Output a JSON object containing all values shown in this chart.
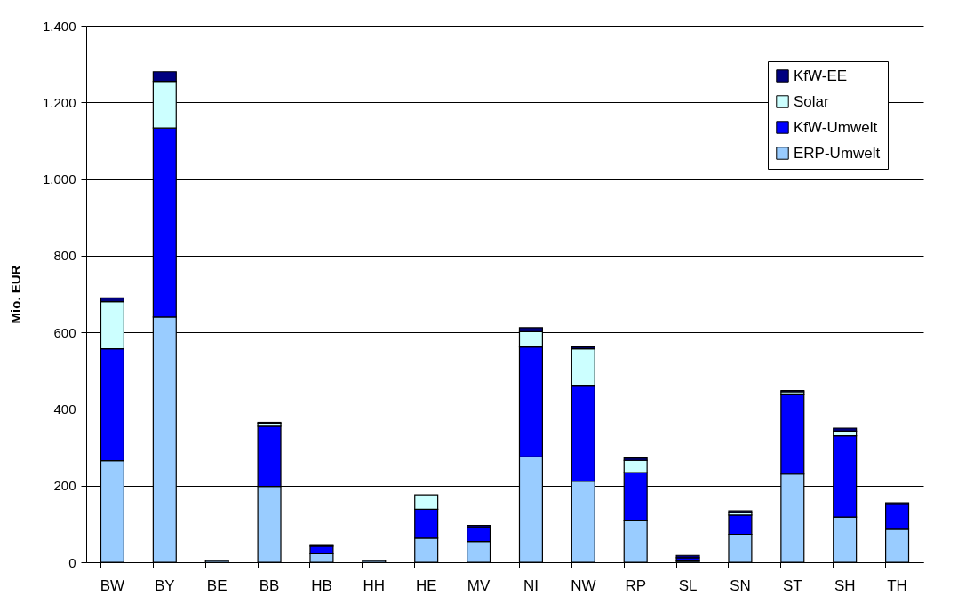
{
  "chart_data": {
    "type": "bar",
    "stacked": true,
    "ylabel": "Mio. EUR",
    "categories": [
      "BW",
      "BY",
      "BE",
      "BB",
      "HB",
      "HH",
      "HE",
      "MV",
      "NI",
      "NW",
      "RP",
      "SL",
      "SN",
      "ST",
      "SH",
      "TH"
    ],
    "series": [
      {
        "name": "ERP-Umwelt",
        "color": "#99ccff",
        "values": [
          265,
          640,
          4,
          198,
          22,
          4,
          63,
          54,
          275,
          212,
          110,
          3,
          73,
          230,
          118,
          86
        ]
      },
      {
        "name": "KfW-Umwelt",
        "color": "#0000ff",
        "values": [
          292,
          493,
          null,
          157,
          20,
          null,
          75,
          37,
          287,
          248,
          124,
          9,
          50,
          207,
          212,
          64
        ]
      },
      {
        "name": "Solar",
        "color": "#ccffff",
        "values": [
          123,
          122,
          null,
          8,
          null,
          null,
          38,
          null,
          40,
          97,
          32,
          null,
          7,
          8,
          12,
          null
        ]
      },
      {
        "name": "KfW-EE",
        "color": "#000080",
        "values": [
          10,
          25,
          null,
          2,
          2,
          null,
          null,
          5,
          10,
          5,
          6,
          6,
          4,
          3,
          8,
          5
        ]
      }
    ],
    "ylim": [
      0,
      1400
    ],
    "yticks": [
      0,
      {
        "value": 200,
        "label": "200"
      },
      {
        "value": 400,
        "label": "400"
      },
      {
        "value": 600,
        "label": "600"
      },
      {
        "value": 800,
        "label": "800"
      },
      {
        "value": 1000,
        "label": "1.000"
      },
      {
        "value": 1200,
        "label": "1.200"
      },
      {
        "value": 1400,
        "label": "1.400"
      }
    ],
    "grid": "y",
    "legend": "top right"
  }
}
